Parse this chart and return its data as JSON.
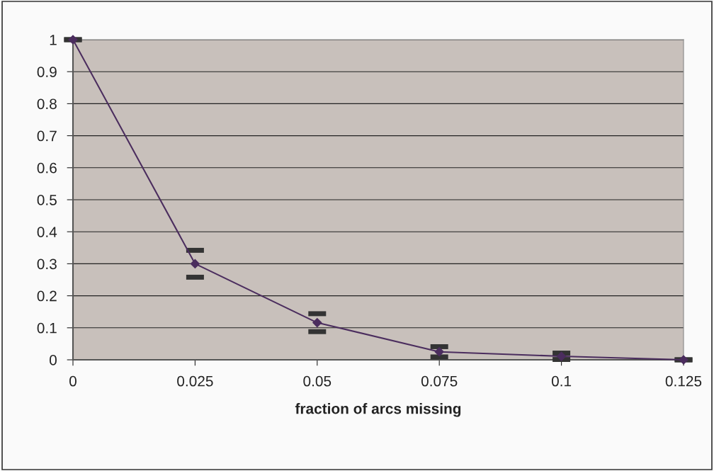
{
  "chart_data": {
    "type": "line",
    "xlabel": "fraction of arcs missing",
    "x": [
      0,
      0.025,
      0.05,
      0.075,
      0.1,
      0.125
    ],
    "series": [
      {
        "color": "#4b2d5e",
        "values": [
          1,
          0.3,
          0.116,
          0.025,
          0.011,
          0
        ],
        "errors": [
          0,
          0.042,
          0.028,
          0.016,
          0.01,
          0
        ]
      }
    ],
    "xlim": [
      0,
      0.125
    ],
    "xticks": [
      0,
      0.025,
      0.05,
      0.075,
      0.1,
      0.125
    ],
    "ylim": [
      0,
      1
    ],
    "yticks": [
      0,
      0.1,
      0.2,
      0.3,
      0.4,
      0.5,
      0.6,
      0.7,
      0.8,
      0.9,
      1
    ],
    "grid": "y",
    "marker": "diamond",
    "line_style": "solid",
    "legend": false
  }
}
